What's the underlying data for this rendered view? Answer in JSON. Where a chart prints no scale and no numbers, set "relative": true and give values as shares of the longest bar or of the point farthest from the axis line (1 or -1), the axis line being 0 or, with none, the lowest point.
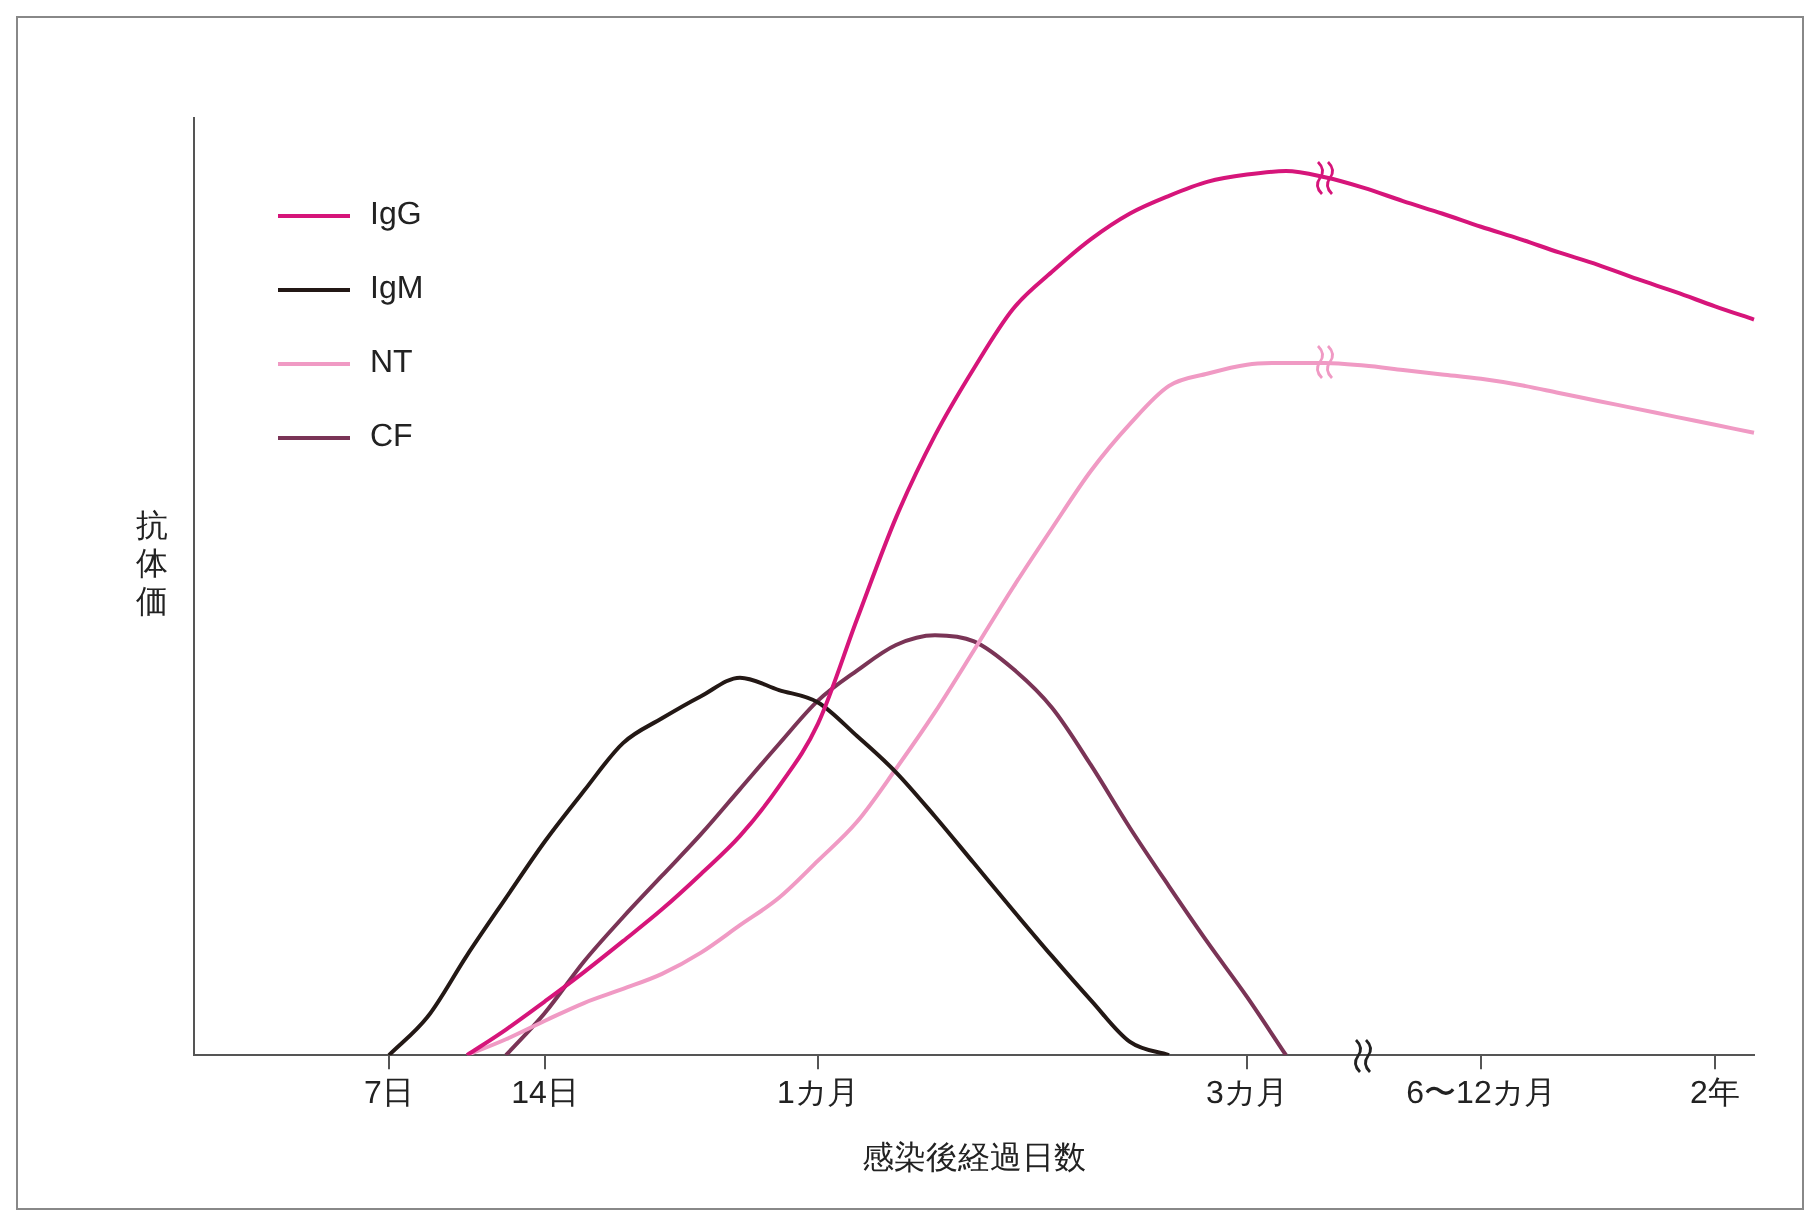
{
  "chart_data": {
    "type": "line",
    "xlabel": "感染後経過日数",
    "ylabel": "抗体価",
    "relative": true,
    "legend": "top left",
    "grid": false,
    "marker": "none",
    "line_style": "solid",
    "categories": [
      null,
      null,
      null,
      null,
      null,
      "7日",
      null,
      null,
      null,
      "14日",
      null,
      null,
      null,
      null,
      null,
      null,
      "1カ月",
      null,
      null,
      null,
      null,
      null,
      null,
      null,
      null,
      null,
      null,
      "3カ月",
      null,
      null,
      null,
      null,
      null,
      "6〜12カ月",
      null,
      null,
      null,
      null,
      null,
      "2年",
      null
    ],
    "series": [
      {
        "name": "IgG",
        "color": "#d6157a",
        "values": [
          null,
          null,
          null,
          null,
          null,
          null,
          null,
          0,
          0.029,
          0.061,
          0.094,
          0.129,
          0.165,
          0.205,
          0.248,
          0.304,
          0.375,
          0.493,
          0.608,
          0.701,
          0.777,
          0.844,
          0.886,
          0.923,
          0.952,
          0.972,
          0.988,
          0.996,
          1,
          0.993,
          0.981,
          0.966,
          0.952,
          0.937,
          0.923,
          0.908,
          0.894,
          0.878,
          0.863,
          0.847,
          0.832
        ]
      },
      {
        "name": "IgM",
        "color": "#231815",
        "values": [
          null,
          null,
          null,
          null,
          null,
          0,
          0.044,
          0.113,
          0.178,
          0.242,
          0.299,
          0.353,
          0.381,
          0.406,
          0.427,
          0.413,
          0.399,
          0.361,
          0.32,
          0.27,
          0.217,
          0.164,
          0.112,
          0.062,
          0.015,
          0,
          null,
          null,
          null,
          null,
          null,
          null,
          null,
          null,
          null,
          null,
          null,
          null,
          null,
          null,
          null
        ]
      },
      {
        "name": "NT",
        "color": "#f09ac4",
        "values": [
          null,
          null,
          null,
          null,
          null,
          null,
          null,
          0,
          0.018,
          0.039,
          0.059,
          0.075,
          0.092,
          0.116,
          0.147,
          0.178,
          0.22,
          0.264,
          0.324,
          0.388,
          0.458,
          0.529,
          0.596,
          0.661,
          0.714,
          0.757,
          0.771,
          0.781,
          0.783,
          0.783,
          0.78,
          0.775,
          0.77,
          0.765,
          0.758,
          0.749,
          0.74,
          0.731,
          0.722,
          0.713,
          0.704
        ]
      },
      {
        "name": "CF",
        "color": "#7a3456",
        "values": [
          null,
          null,
          null,
          null,
          null,
          null,
          null,
          null,
          0,
          0.048,
          0.106,
          0.156,
          0.203,
          0.25,
          0.301,
          0.352,
          0.401,
          0.435,
          0.464,
          0.475,
          0.468,
          0.437,
          0.393,
          0.328,
          0.257,
          0.191,
          0.127,
          0.066,
          0,
          null,
          null,
          null,
          null,
          null,
          null,
          null,
          null,
          null,
          null,
          null,
          null
        ]
      }
    ]
  }
}
